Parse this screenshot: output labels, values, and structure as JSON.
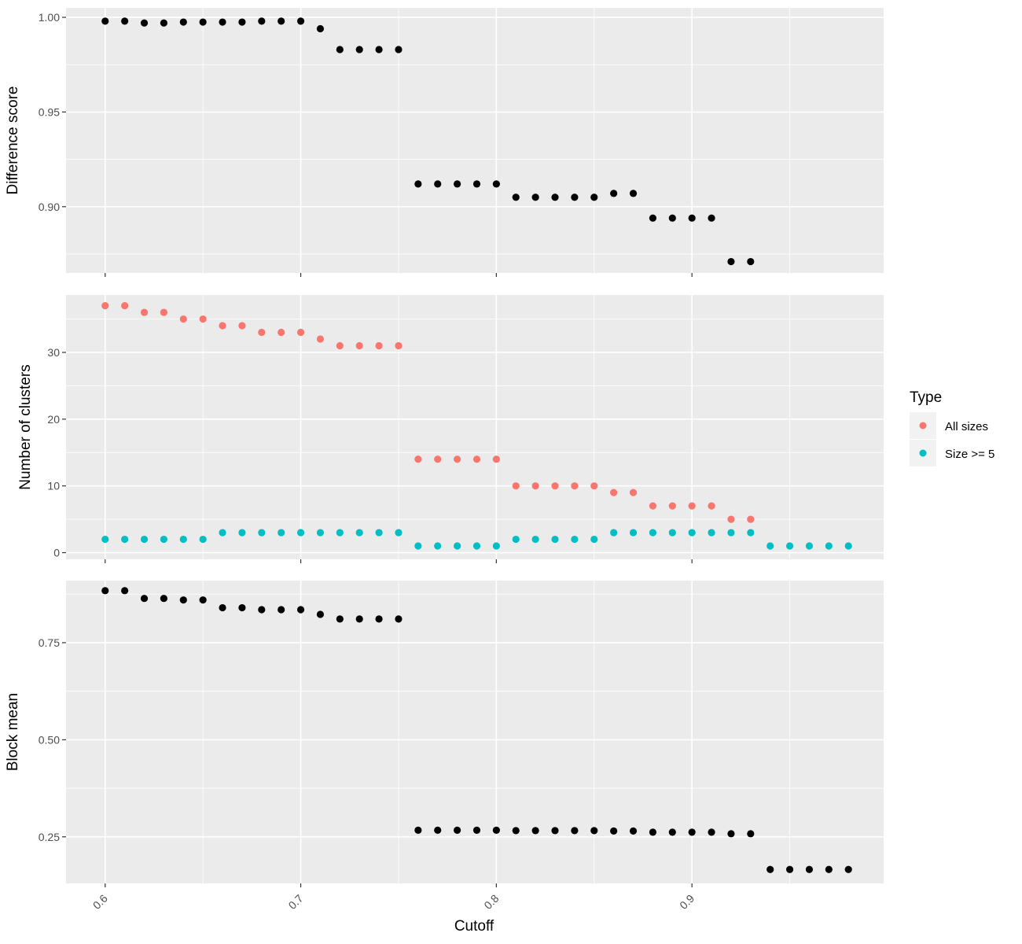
{
  "chart_data": {
    "type": "scatter",
    "xlabel": "Cutoff",
    "x_ticks": [
      0.6,
      0.7,
      0.8,
      0.9
    ],
    "x_tick_labels": [
      "0.6",
      "0.7",
      "0.8",
      "0.9"
    ],
    "xlim": [
      0.58,
      0.998
    ],
    "legend": {
      "title": "Type",
      "position": "right",
      "entries": [
        {
          "label": "All sizes",
          "color": "#F8766D"
        },
        {
          "label": "Size >= 5",
          "color": "#00BFC4"
        }
      ]
    },
    "panels": [
      {
        "ylabel": "Difference score",
        "ylim": [
          0.865,
          1.005
        ],
        "y_ticks": [
          0.9,
          0.95,
          1.0
        ],
        "y_tick_labels": [
          "0.90",
          "0.95",
          "1.00"
        ],
        "y_minor": [
          0.875,
          0.925,
          0.975
        ],
        "series": [
          {
            "color": "#000000",
            "x": [
              0.6,
              0.61,
              0.62,
              0.63,
              0.64,
              0.65,
              0.66,
              0.67,
              0.68,
              0.69,
              0.7,
              0.71,
              0.72,
              0.73,
              0.74,
              0.75,
              0.76,
              0.77,
              0.78,
              0.79,
              0.8,
              0.81,
              0.82,
              0.83,
              0.84,
              0.85,
              0.86,
              0.87,
              0.88,
              0.89,
              0.9,
              0.91,
              0.92,
              0.93
            ],
            "y": [
              0.998,
              0.998,
              0.997,
              0.997,
              0.9975,
              0.9975,
              0.9975,
              0.9975,
              0.998,
              0.998,
              0.998,
              0.994,
              0.983,
              0.983,
              0.983,
              0.983,
              0.912,
              0.912,
              0.912,
              0.912,
              0.912,
              0.905,
              0.905,
              0.905,
              0.905,
              0.905,
              0.907,
              0.907,
              0.894,
              0.894,
              0.894,
              0.894,
              0.871,
              0.871
            ]
          }
        ]
      },
      {
        "ylabel": "Number of clusters",
        "ylim": [
          -1,
          38.6
        ],
        "y_ticks": [
          0,
          10,
          20,
          30
        ],
        "y_tick_labels": [
          "0",
          "10",
          "20",
          "30"
        ],
        "y_minor": [
          5,
          15,
          25,
          35
        ],
        "series": [
          {
            "name": "All sizes",
            "color": "#F8766D",
            "x": [
              0.6,
              0.61,
              0.62,
              0.63,
              0.64,
              0.65,
              0.66,
              0.67,
              0.68,
              0.69,
              0.7,
              0.71,
              0.72,
              0.73,
              0.74,
              0.75,
              0.76,
              0.77,
              0.78,
              0.79,
              0.8,
              0.81,
              0.82,
              0.83,
              0.84,
              0.85,
              0.86,
              0.87,
              0.88,
              0.89,
              0.9,
              0.91,
              0.92,
              0.93
            ],
            "y": [
              37,
              37,
              36,
              36,
              35,
              35,
              34,
              34,
              33,
              33,
              33,
              32,
              31,
              31,
              31,
              31,
              14,
              14,
              14,
              14,
              14,
              10,
              10,
              10,
              10,
              10,
              9,
              9,
              7,
              7,
              7,
              7,
              5,
              5
            ]
          },
          {
            "name": "Size >= 5",
            "color": "#00BFC4",
            "x": [
              0.6,
              0.61,
              0.62,
              0.63,
              0.64,
              0.65,
              0.66,
              0.67,
              0.68,
              0.69,
              0.7,
              0.71,
              0.72,
              0.73,
              0.74,
              0.75,
              0.76,
              0.77,
              0.78,
              0.79,
              0.8,
              0.81,
              0.82,
              0.83,
              0.84,
              0.85,
              0.86,
              0.87,
              0.88,
              0.89,
              0.9,
              0.91,
              0.92,
              0.93,
              0.94,
              0.95,
              0.96,
              0.97,
              0.98
            ],
            "y": [
              2,
              2,
              2,
              2,
              2,
              2,
              3,
              3,
              3,
              3,
              3,
              3,
              3,
              3,
              3,
              3,
              1,
              1,
              1,
              1,
              1,
              2,
              2,
              2,
              2,
              2,
              3,
              3,
              3,
              3,
              3,
              3,
              3,
              3,
              1,
              1,
              1,
              1,
              1
            ]
          }
        ]
      },
      {
        "ylabel": "Block mean",
        "ylim": [
          0.13,
          0.91
        ],
        "y_ticks": [
          0.25,
          0.5,
          0.75
        ],
        "y_tick_labels": [
          "0.25",
          "0.50",
          "0.75"
        ],
        "y_minor": [
          0.375,
          0.625,
          0.875
        ],
        "series": [
          {
            "color": "#000000",
            "x": [
              0.6,
              0.61,
              0.62,
              0.63,
              0.64,
              0.65,
              0.66,
              0.67,
              0.68,
              0.69,
              0.7,
              0.71,
              0.72,
              0.73,
              0.74,
              0.75,
              0.76,
              0.77,
              0.78,
              0.79,
              0.8,
              0.81,
              0.82,
              0.83,
              0.84,
              0.85,
              0.86,
              0.87,
              0.88,
              0.89,
              0.9,
              0.91,
              0.92,
              0.93,
              0.94,
              0.95,
              0.96,
              0.97,
              0.98
            ],
            "y": [
              0.884,
              0.884,
              0.864,
              0.864,
              0.86,
              0.86,
              0.84,
              0.84,
              0.835,
              0.835,
              0.835,
              0.823,
              0.811,
              0.811,
              0.811,
              0.811,
              0.267,
              0.267,
              0.267,
              0.267,
              0.267,
              0.266,
              0.266,
              0.266,
              0.266,
              0.266,
              0.265,
              0.265,
              0.262,
              0.262,
              0.262,
              0.262,
              0.258,
              0.258,
              0.166,
              0.166,
              0.166,
              0.166,
              0.166
            ]
          }
        ]
      }
    ]
  }
}
